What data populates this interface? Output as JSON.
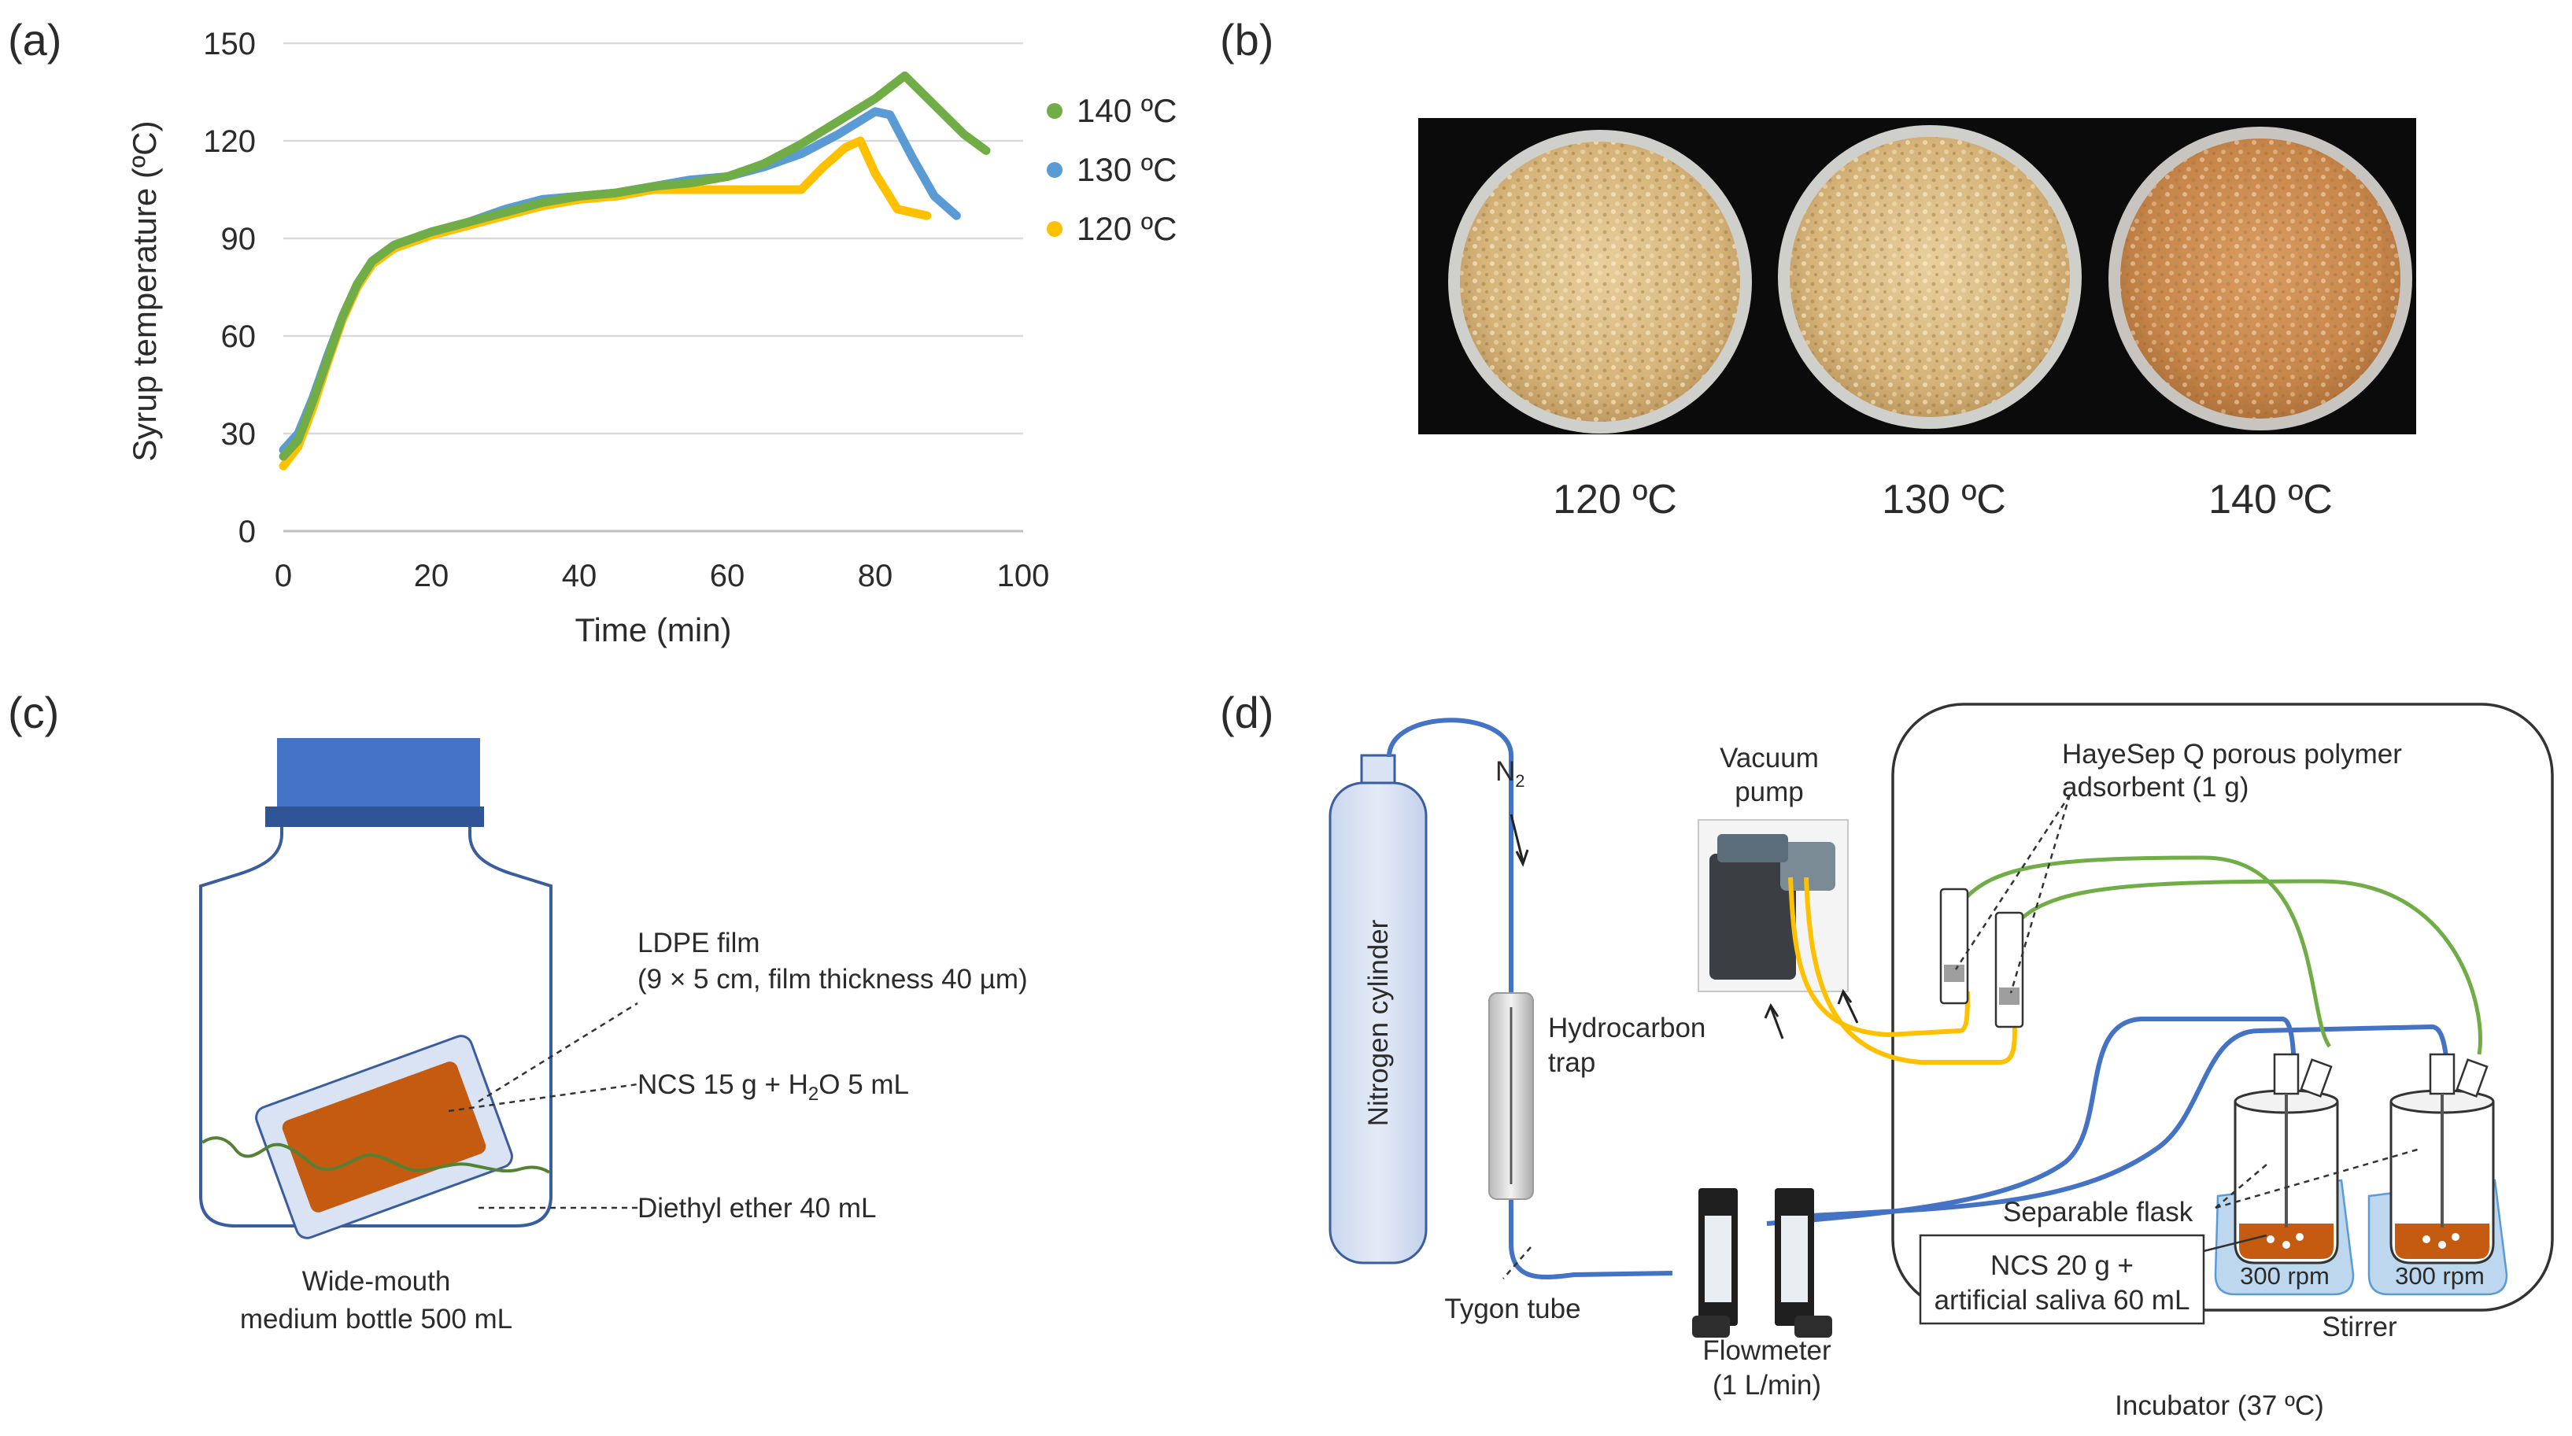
{
  "panels": {
    "a": "(a)",
    "b": "(b)",
    "c": "(c)",
    "d": "(d)"
  },
  "colors": {
    "s140": "#70ad47",
    "s130": "#5b9bd5",
    "s120": "#ffc000",
    "tube_blue": "#4472c4",
    "tube_green": "#70ad47",
    "tube_yellow": "#ffc000",
    "liquid": "#c55a11",
    "cap": "#4472c4",
    "cylinder": "#dae3f3"
  },
  "chart_data": {
    "type": "line",
    "title": "",
    "xlabel": "Time (min)",
    "ylabel": "Syrup temperature (ºC)",
    "xlim": [
      0,
      100
    ],
    "ylim": [
      0,
      150
    ],
    "xticks": [
      "0",
      "20",
      "40",
      "60",
      "80",
      "100"
    ],
    "yticks": [
      "0",
      "30",
      "60",
      "90",
      "120",
      "150"
    ],
    "grid": "horizontal",
    "legend": "right",
    "series": [
      {
        "name": "140 ºC",
        "color": "#70ad47",
        "x": [
          0,
          2,
          4,
          6,
          8,
          10,
          12,
          15,
          20,
          25,
          30,
          35,
          40,
          45,
          50,
          55,
          60,
          65,
          70,
          75,
          80,
          84,
          88,
          92,
          95
        ],
        "y": [
          23,
          28,
          40,
          53,
          66,
          76,
          83,
          88,
          92,
          95,
          98,
          101,
          103,
          104,
          106,
          107,
          109,
          113,
          119,
          126,
          133,
          140,
          131,
          122,
          117
        ]
      },
      {
        "name": "130 ºC",
        "color": "#5b9bd5",
        "x": [
          0,
          2,
          4,
          6,
          8,
          10,
          12,
          15,
          20,
          25,
          30,
          35,
          40,
          45,
          50,
          55,
          60,
          65,
          70,
          75,
          80,
          82,
          85,
          88,
          91
        ],
        "y": [
          25,
          30,
          41,
          54,
          66,
          76,
          83,
          88,
          92,
          95,
          99,
          102,
          103,
          104,
          106,
          108,
          109,
          112,
          116,
          122,
          129,
          128,
          115,
          103,
          97
        ]
      },
      {
        "name": "120 ºC",
        "color": "#ffc000",
        "x": [
          0,
          2,
          4,
          6,
          8,
          10,
          12,
          15,
          20,
          25,
          30,
          35,
          40,
          45,
          50,
          55,
          60,
          65,
          70,
          73,
          76,
          78,
          80,
          83,
          87
        ],
        "y": [
          20,
          26,
          38,
          52,
          65,
          75,
          82,
          87,
          91,
          94,
          97,
          100,
          102,
          103,
          105,
          105,
          105,
          105,
          105,
          112,
          118,
          120,
          110,
          99,
          97
        ]
      }
    ]
  },
  "panel_b": {
    "labels": [
      "120 ºC",
      "130 ºC",
      "140 ºC"
    ]
  },
  "panel_c": {
    "ldpe_line1": "LDPE film",
    "ldpe_line2": "(9 × 5 cm, film thickness 40 µm)",
    "ncs_pre": "NCS 15 g + H",
    "ncs_sub": "2",
    "ncs_post": "O 5 mL",
    "ether": "Diethyl ether 40 mL",
    "bottle_line1": "Wide-mouth",
    "bottle_line2": "medium bottle 500 mL"
  },
  "panel_d": {
    "cylinder": "Nitrogen cylinder",
    "n2_pre": "N",
    "n2_sub": "2",
    "trap_line1": "Hydrocarbon",
    "trap_line2": "trap",
    "tygon": "Tygon tube",
    "flow_line1": "Flowmeter",
    "flow_line2": "(1 L/min)",
    "vac_line1": "Vacuum",
    "vac_line2": "pump",
    "haye_line1": "HayeSep Q porous polymer",
    "haye_line2": "adsorbent (1 g)",
    "flask": "Separable flask",
    "ncs_line1": "NCS 20 g +",
    "ncs_line2": "artificial saliva 60 mL",
    "rpm": "300 rpm",
    "stirrer": "Stirrer",
    "incubator": "Incubator (37 ºC)"
  }
}
